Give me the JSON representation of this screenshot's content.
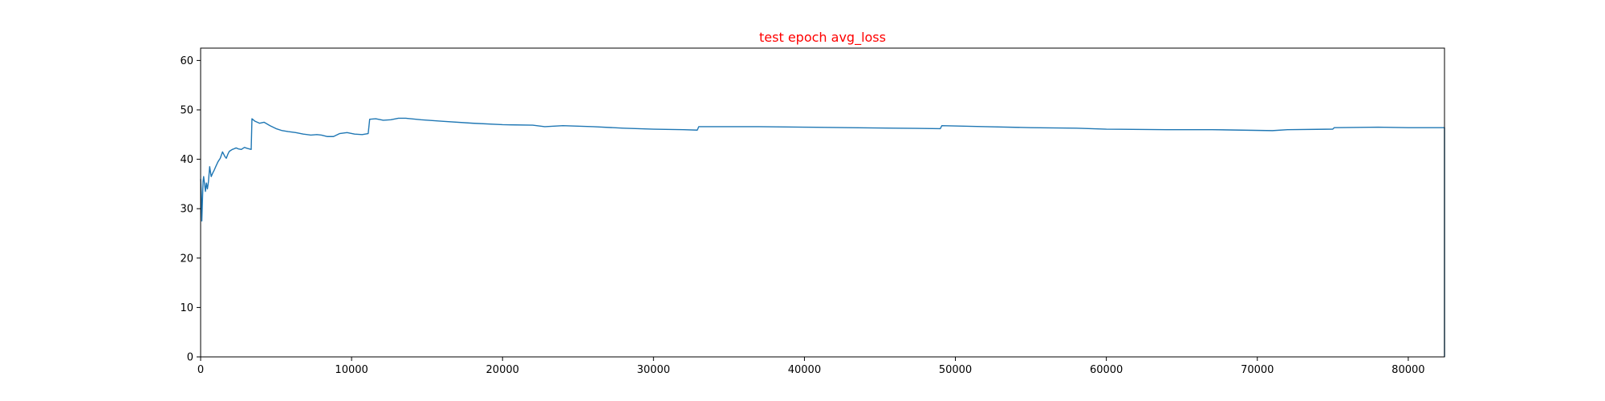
{
  "chart_data": {
    "type": "line",
    "title": "test epoch avg_loss",
    "title_color": "#ff0000",
    "xlabel": "",
    "ylabel": "",
    "xlim": [
      0,
      82400
    ],
    "ylim": [
      0,
      62.5
    ],
    "xticks": [
      0,
      10000,
      20000,
      30000,
      40000,
      50000,
      60000,
      70000,
      80000
    ],
    "yticks": [
      0,
      10,
      20,
      30,
      40,
      50,
      60
    ],
    "grid": false,
    "legend": "none",
    "series": [
      {
        "color": "#1f77b4",
        "x": [
          0,
          40,
          80,
          120,
          160,
          200,
          260,
          320,
          380,
          450,
          520,
          600,
          700,
          800,
          900,
          1000,
          1150,
          1300,
          1450,
          1600,
          1700,
          1800,
          1900,
          2000,
          2100,
          2200,
          2350,
          2500,
          2700,
          2900,
          3100,
          3350,
          3400,
          3600,
          3900,
          4200,
          4600,
          5000,
          5400,
          5800,
          6300,
          6800,
          7300,
          7700,
          8000,
          8400,
          8800,
          9200,
          9700,
          10200,
          10700,
          11100,
          11200,
          11600,
          12100,
          12600,
          13100,
          13600,
          14600,
          16000,
          18000,
          20000,
          22000,
          22800,
          24000,
          26000,
          28000,
          30000,
          32000,
          32900,
          33000,
          35000,
          37000,
          40000,
          43000,
          46000,
          49000,
          49100,
          52000,
          55000,
          58000,
          60000,
          64000,
          67000,
          71000,
          72000,
          75000,
          75100,
          78000,
          80000,
          82300,
          82400,
          82400
        ],
        "y": [
          36.0,
          33.5,
          27.5,
          31.5,
          35.5,
          36.5,
          35.0,
          33.5,
          35.2,
          34.0,
          35.5,
          38.5,
          36.5,
          37.2,
          37.8,
          38.5,
          39.5,
          40.2,
          41.5,
          40.6,
          40.2,
          41.0,
          41.6,
          41.8,
          42.0,
          42.1,
          42.3,
          42.1,
          42.0,
          42.4,
          42.2,
          42.0,
          48.2,
          47.7,
          47.3,
          47.5,
          46.8,
          46.2,
          45.8,
          45.6,
          45.4,
          45.1,
          44.9,
          45.0,
          44.9,
          44.6,
          44.6,
          45.2,
          45.4,
          45.1,
          45.0,
          45.2,
          48.1,
          48.2,
          47.9,
          48.0,
          48.3,
          48.3,
          48.0,
          47.7,
          47.3,
          47.0,
          46.9,
          46.6,
          46.8,
          46.6,
          46.3,
          46.1,
          46.0,
          45.9,
          46.6,
          46.6,
          46.6,
          46.5,
          46.4,
          46.3,
          46.2,
          46.8,
          46.6,
          46.4,
          46.3,
          46.1,
          46.0,
          46.0,
          45.8,
          46.0,
          46.1,
          46.4,
          46.5,
          46.4,
          46.4,
          46.4,
          0.0
        ]
      }
    ]
  }
}
